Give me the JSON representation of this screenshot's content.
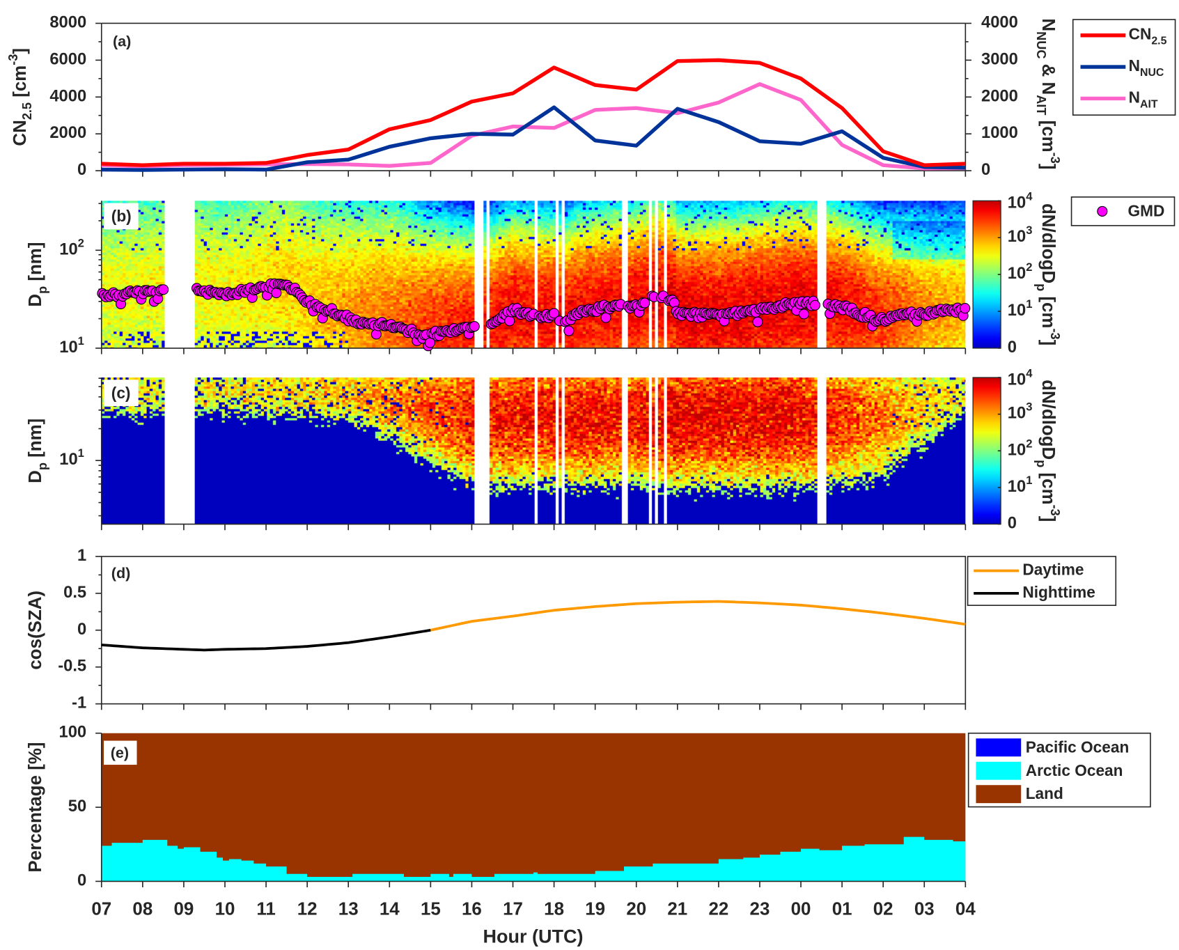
{
  "figure": {
    "xlabel": "Hour (UTC)",
    "xticks": [
      "07",
      "08",
      "09",
      "10",
      "11",
      "12",
      "13",
      "14",
      "15",
      "16",
      "17",
      "18",
      "19",
      "20",
      "21",
      "22",
      "23",
      "00",
      "01",
      "02",
      "03",
      "04"
    ]
  },
  "chart_data": [
    {
      "panel": "a",
      "type": "line",
      "label": "(a)",
      "x_hours": [
        7,
        8,
        9,
        10,
        11,
        12,
        13,
        14,
        15,
        16,
        17,
        18,
        19,
        20,
        21,
        22,
        23,
        24,
        25,
        26,
        27,
        28
      ],
      "ylabel_left": {
        "main": "CN",
        "sub": "2.5",
        "unit": " [cm",
        "sup": "-3",
        "close": "]"
      },
      "ylabel_right": {
        "n1": "N",
        "sub1": "NUC",
        "amp": " & N",
        "sub2": "AIT",
        "unit": " [cm",
        "sup": "-3",
        "close": "]"
      },
      "ylim_left": [
        0,
        8000
      ],
      "ylim_right": [
        0,
        4000
      ],
      "yticks_left": [
        "0",
        "2000",
        "4000",
        "6000",
        "8000"
      ],
      "yticks_right": [
        "0",
        "1000",
        "2000",
        "3000",
        "4000"
      ],
      "legend_placement": "outside-right",
      "series": [
        {
          "name": "CN2.5",
          "legend_main": "CN",
          "legend_sub": "2.5",
          "axis": "left",
          "color": "#ff0000",
          "values": [
            380,
            300,
            380,
            380,
            420,
            850,
            1150,
            2250,
            2750,
            3750,
            4200,
            5600,
            4650,
            4400,
            5950,
            6000,
            5850,
            5000,
            3400,
            1050,
            300,
            380
          ]
        },
        {
          "name": "NNUC",
          "legend_main": "N",
          "legend_sub": "NUC",
          "axis": "right",
          "color": "#003399",
          "values": [
            30,
            20,
            30,
            40,
            30,
            230,
            300,
            650,
            880,
            1000,
            980,
            1720,
            820,
            680,
            1680,
            1320,
            800,
            730,
            1070,
            350,
            100,
            80
          ]
        },
        {
          "name": "NAIT",
          "legend_main": "N",
          "legend_sub": "AIT",
          "axis": "right",
          "color": "#ff66cc",
          "values": [
            150,
            120,
            150,
            160,
            170,
            180,
            170,
            130,
            210,
            950,
            1200,
            1160,
            1650,
            1700,
            1560,
            1850,
            2350,
            1920,
            700,
            150,
            60,
            70
          ]
        }
      ]
    },
    {
      "panel": "b",
      "type": "heatmap",
      "label": "(b)",
      "ylabel": {
        "main": "D",
        "sub": "p",
        "unit": " [nm]"
      },
      "ylim_nm": [
        10,
        320
      ],
      "yticks": [
        {
          "base": "10",
          "exp": "1",
          "value": 10
        },
        {
          "base": "10",
          "exp": "2",
          "value": 100
        }
      ],
      "colorbar": {
        "label_main": "dN/dlogD",
        "label_sub": "p",
        "label_unit": " [cm",
        "label_sup": "-3",
        "label_close": "]",
        "ticks": [
          {
            "base": "10",
            "exp": "4"
          },
          {
            "base": "10",
            "exp": "3"
          },
          {
            "base": "10",
            "exp": "2"
          },
          {
            "base": "10",
            "exp": "1"
          },
          {
            "base": "0",
            "exp": ""
          }
        ],
        "range_log10": [
          0,
          4
        ],
        "colormap": "jet"
      },
      "gaps_hours": [
        [
          8.55,
          9.25
        ],
        [
          16.09,
          16.32
        ],
        [
          16.38,
          16.45
        ],
        [
          17.53,
          17.6
        ],
        [
          18.04,
          18.1
        ],
        [
          18.17,
          18.24
        ],
        [
          19.67,
          19.78
        ],
        [
          20.27,
          20.35
        ],
        [
          20.47,
          20.55
        ],
        [
          20.69,
          20.77
        ],
        [
          24.4,
          24.53
        ],
        [
          24.57,
          24.64
        ]
      ],
      "intensity_profile_log10": {
        "x": [
          7,
          10,
          12,
          13,
          14,
          15,
          16,
          17,
          18,
          19,
          20,
          21,
          22,
          23,
          24,
          25,
          26,
          27,
          28
        ],
        "y": [
          2.5,
          2.6,
          2.8,
          3.0,
          3.2,
          3.5,
          3.6,
          3.7,
          3.7,
          3.7,
          3.7,
          3.8,
          3.8,
          3.8,
          3.8,
          3.7,
          3.5,
          3.1,
          2.9
        ]
      },
      "gmd": {
        "name": "GMD",
        "color": "#ff00ff",
        "x": [
          7,
          7.5,
          8,
          8.5,
          9.25,
          9.5,
          10,
          10.5,
          11,
          11.3,
          11.6,
          12,
          12.5,
          13,
          13.5,
          14,
          14.5,
          14.8,
          15,
          15.5,
          16,
          16.5,
          17,
          17.5,
          18,
          18.3,
          18.5,
          19,
          19.5,
          20,
          20.5,
          20.9,
          21,
          21.5,
          22,
          22.5,
          23,
          23.5,
          24,
          24.5,
          25,
          25.5,
          26,
          26.5,
          27,
          27.5,
          28
        ],
        "y_nm": [
          35,
          35,
          38,
          40,
          42,
          38,
          36,
          38,
          42,
          45,
          42,
          30,
          24,
          20,
          18,
          17,
          15,
          13,
          14,
          15,
          17,
          18,
          24,
          22,
          21,
          18,
          22,
          25,
          27,
          27,
          34,
          30,
          22,
          22,
          22,
          23,
          25,
          27,
          29,
          28,
          26,
          22,
          19,
          22,
          23,
          24,
          26
        ]
      }
    },
    {
      "panel": "c",
      "type": "heatmap",
      "label": "(c)",
      "ylabel": {
        "main": "D",
        "sub": "p",
        "unit": " [nm]"
      },
      "ylim_nm": [
        2.5,
        61
      ],
      "yticks": [
        {
          "base": "10",
          "exp": "1",
          "value": 10
        }
      ],
      "colorbar": {
        "label_main": "dN/dlogD",
        "label_sub": "p",
        "label_unit": " [cm",
        "label_sup": "-3",
        "label_close": "]",
        "ticks": [
          {
            "base": "10",
            "exp": "4"
          },
          {
            "base": "10",
            "exp": "3"
          },
          {
            "base": "10",
            "exp": "2"
          },
          {
            "base": "10",
            "exp": "1"
          },
          {
            "base": "0",
            "exp": ""
          }
        ],
        "range_log10": [
          0,
          4
        ],
        "colormap": "jet"
      },
      "gaps_hours": [
        [
          8.55,
          9.25
        ],
        [
          16.05,
          16.45
        ],
        [
          17.53,
          17.6
        ],
        [
          18.04,
          18.1
        ],
        [
          18.17,
          18.24
        ],
        [
          19.67,
          19.78
        ],
        [
          20.27,
          20.35
        ],
        [
          20.47,
          20.55
        ],
        [
          20.69,
          20.77
        ],
        [
          24.4,
          24.64
        ]
      ],
      "intensity_profile_log10": {
        "x": [
          7,
          10,
          12,
          13,
          14,
          15,
          16,
          17,
          18,
          19,
          20,
          21,
          22,
          23,
          24,
          25,
          26,
          27,
          28
        ],
        "y": [
          2.5,
          2.6,
          2.7,
          2.9,
          3.1,
          3.4,
          3.6,
          3.7,
          3.7,
          3.7,
          3.7,
          3.8,
          3.8,
          3.8,
          3.8,
          3.5,
          3.2,
          2.8,
          2.6
        ]
      }
    },
    {
      "panel": "d",
      "type": "line",
      "label": "(d)",
      "ylabel": "cos(SZA)",
      "ylim": [
        -1,
        1
      ],
      "yticks": [
        "-1",
        "-0.5",
        "0",
        "0.5",
        "1"
      ],
      "x_hours": [
        7,
        8,
        9,
        9.5,
        10,
        11,
        12,
        13,
        14,
        15,
        16,
        17,
        18,
        19,
        20,
        21,
        22,
        23,
        24,
        25,
        26,
        27,
        28
      ],
      "values": [
        -0.2,
        -0.24,
        -0.26,
        -0.27,
        -0.26,
        -0.25,
        -0.22,
        -0.17,
        -0.09,
        0.0,
        0.12,
        0.19,
        0.27,
        0.32,
        0.36,
        0.38,
        0.39,
        0.37,
        0.34,
        0.29,
        0.23,
        0.16,
        0.08
      ],
      "day_start_hour": 15,
      "legend": [
        {
          "label": "Daytime",
          "color": "#ff9900"
        },
        {
          "label": "Nighttime",
          "color": "#000000"
        }
      ]
    },
    {
      "panel": "e",
      "type": "area",
      "label": "(e)",
      "ylabel": "Percentage [%]",
      "ylim": [
        0,
        100
      ],
      "yticks": [
        "0",
        "50",
        "100"
      ],
      "step_x_hours": [
        7,
        7.25,
        8,
        8.6,
        8.85,
        9,
        9.4,
        9.8,
        9.95,
        10.1,
        10.4,
        10.7,
        11,
        11.5,
        12,
        13,
        13.1,
        14,
        14.35,
        15,
        15.4,
        15.45,
        15.55,
        16,
        16.55,
        17,
        17.5,
        17.6,
        18,
        18.55,
        19,
        19.7,
        20.4,
        21,
        22,
        22.6,
        23,
        23.5,
        24,
        24.45,
        25,
        25.55,
        26,
        26.5,
        27,
        27.7,
        28
      ],
      "series": [
        {
          "name": "Pacific Ocean",
          "color": "#0000ff",
          "values": [
            0,
            0,
            0,
            0,
            0,
            0,
            0,
            0,
            0,
            0,
            0,
            0,
            0,
            0,
            0,
            0,
            0,
            0,
            0,
            0,
            0,
            0,
            0,
            0,
            0,
            0,
            0,
            0,
            0,
            0,
            0,
            0,
            0,
            0,
            0,
            0,
            0,
            0,
            0,
            0,
            0,
            0,
            0,
            0,
            0,
            0,
            0
          ]
        },
        {
          "name": "Arctic Ocean",
          "color": "#00ffff",
          "values": [
            24,
            26,
            28,
            24,
            22,
            23,
            20,
            16,
            14,
            15,
            14,
            12,
            10,
            5,
            3,
            3,
            5,
            5,
            3,
            5,
            5,
            3,
            5,
            3,
            5,
            5,
            6,
            5,
            5,
            5,
            7,
            10,
            12,
            12,
            15,
            16,
            18,
            20,
            22,
            21,
            24,
            25,
            25,
            30,
            28,
            27,
            26
          ]
        },
        {
          "name": "Land",
          "color": "#993300",
          "values": "remainder"
        }
      ],
      "legend": [
        "Pacific Ocean",
        "Arctic Ocean",
        "Land"
      ]
    }
  ]
}
